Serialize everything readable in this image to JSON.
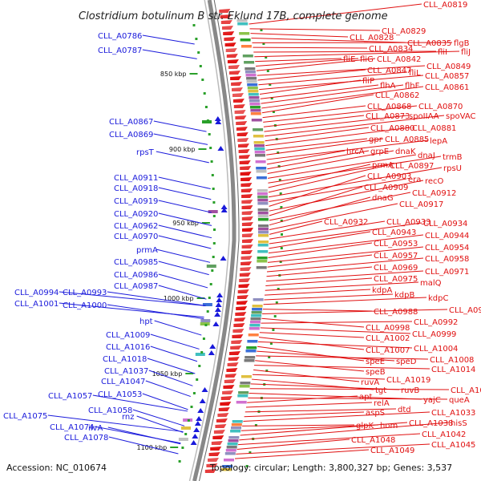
{
  "title": "Clostridium botulinum B str. Eklund 17B, complete genome",
  "accession_text": "Accession: NC_010674",
  "summary_text": "Topology: circular; Length: 3,800,327 bp; Genes: 3,537",
  "colors": {
    "forward": "#1a1adb",
    "reverse": "#e01010",
    "backbone": "#888888"
  },
  "scale_marks": [
    "850 kbp",
    "900 kbp",
    "950 kbp",
    "1000 kbp",
    "1050 kbp",
    "1100 kbp"
  ],
  "forward_labels": [
    "CLL_A0786",
    "CLL_A0787",
    "CLL_A0867",
    "CLL_A0869",
    "rpsT",
    "CLL_A0911",
    "CLL_A0918",
    "CLL_A0919",
    "CLL_A0920",
    "CLL_A0962",
    "CLL_A0970",
    "prmA",
    "CLL_A0985",
    "CLL_A0986",
    "CLL_A0987",
    "CLL_A0994",
    "CLL_A0993",
    "CLL_A1001",
    "CLL_A1000",
    "hpt",
    "CLL_A1009",
    "CLL_A1016",
    "CLL_A1018",
    "CLL_A1037",
    "CLL_A1047",
    "CLL_A1057",
    "CLL_A1053",
    "CLL_A1058",
    "rnz",
    "CLL_A1075",
    "ilvA",
    "CLL_A1074",
    "CLL_A1078"
  ],
  "reverse_labels": [
    "CLL_A0819",
    "CLL_A0829",
    "CLL_A0828",
    "CLL_A0835",
    "flgB",
    "CLL_A0834",
    "fliI",
    "fliJ",
    "fliE",
    "fliG",
    "CLL_A0842",
    "CLL_A0849",
    "CLL_A0847",
    "fliL",
    "CLL_A0857",
    "fliP",
    "flhA",
    "flhF",
    "CLL_A0861",
    "CLL_A0862",
    "CLL_A0868",
    "CLL_A0870",
    "CLL_A0873",
    "spoIIAA",
    "spoVAC",
    "CLL_A0880",
    "CLL_A0881",
    "gpr",
    "CLL_A0885",
    "lepA",
    "hrcA",
    "grpE",
    "dnaK",
    "dnaJ",
    "trmB",
    "prmA",
    "CLL_A0897",
    "rpsU",
    "era",
    "CLL_A0903",
    "recO",
    "CLL_A0909",
    "CLL_A0912",
    "dnaG",
    "CLL_A0917",
    "CLL_A0932",
    "CLL_A0933",
    "CLL_A0934",
    "CLL_A0943",
    "CLL_A0944",
    "CLL_A0953",
    "CLL_A0954",
    "CLL_A0957",
    "CLL_A0958",
    "CLL_A0969",
    "CLL_A0971",
    "CLL_A0975",
    "malQ",
    "kdpA",
    "kdpB",
    "kdpC",
    "CLL_A0988",
    "CLL_A0984",
    "CLL_A0998",
    "CLL_A0992",
    "CLL_A0999",
    "CLL_A1002",
    "CLL_A1007",
    "CLL_A1004",
    "speE",
    "speD",
    "CLL_A1008",
    "speB",
    "CLL_A1014",
    "ruvA",
    "CLL_A1019",
    "tgt",
    "ruvB",
    "CLL_A1020",
    "yajC",
    "queA",
    "apt",
    "relA",
    "dtd",
    "aspS",
    "CLL_A1033",
    "glpK",
    "hom",
    "CLL_A1038",
    "hisS",
    "CLL_A1042",
    "CLL_A1048",
    "CLL_A1045",
    "CLL_A1049"
  ]
}
